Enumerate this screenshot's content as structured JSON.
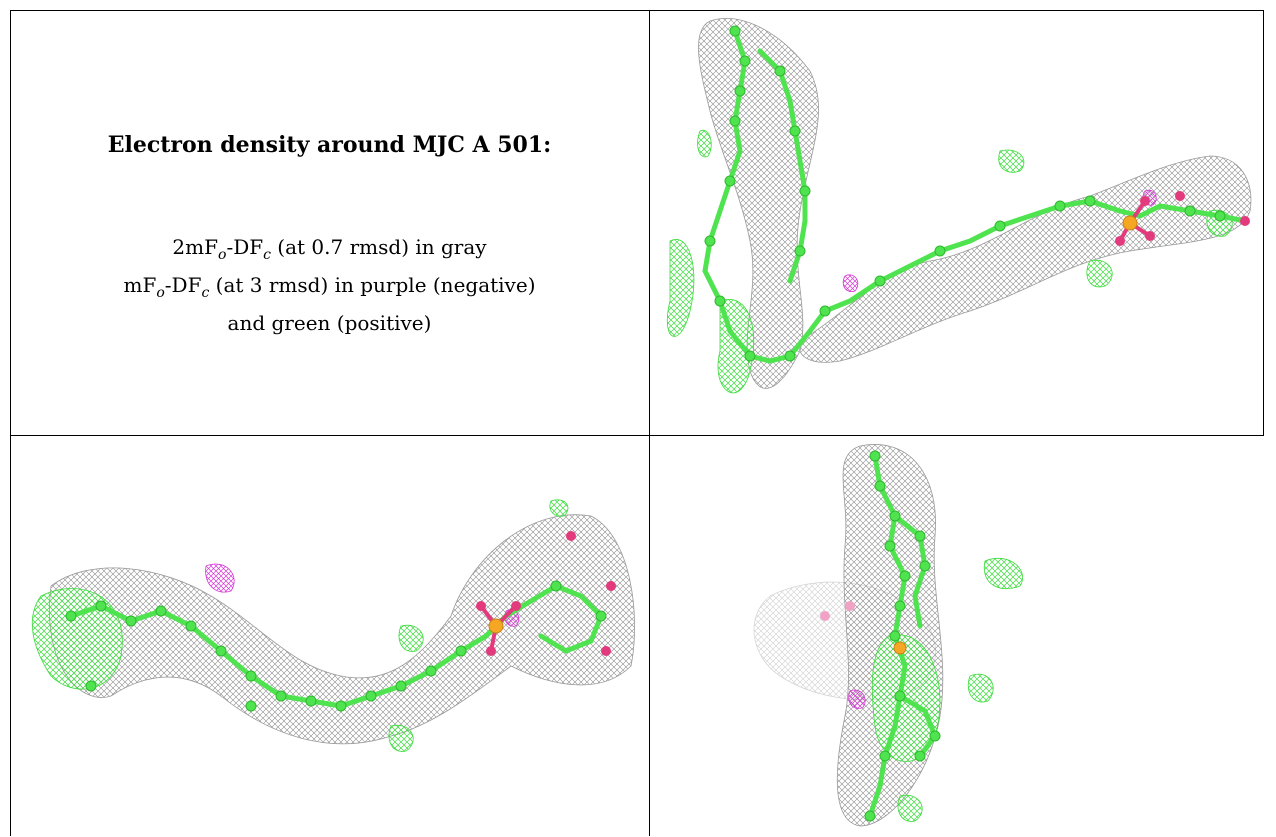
{
  "title": "Electron density around MJC A 501:",
  "legend": {
    "line1": {
      "prefix": "2mF",
      "sub_o": "o",
      "mid": "-DF",
      "sub_c": "c",
      "suffix": " (at 0.7 rmsd) in gray"
    },
    "line2": {
      "prefix": "mF",
      "sub_o": "o",
      "mid": "-DF",
      "sub_c": "c",
      "suffix": " (at 3 rmsd) in purple (negative)"
    },
    "line3": "and green (positive)"
  },
  "colors": {
    "model_carbon": "#4fe34f",
    "oxygen": "#e23a7c",
    "phosphorus": "#f5a623",
    "density_2fofc": "#8c8c8c",
    "density_positive": "#3ddc3d",
    "density_negative": "#d63ad6"
  },
  "views": [
    {
      "name": "view-top-right"
    },
    {
      "name": "view-bottom-left"
    },
    {
      "name": "view-bottom-right"
    }
  ]
}
